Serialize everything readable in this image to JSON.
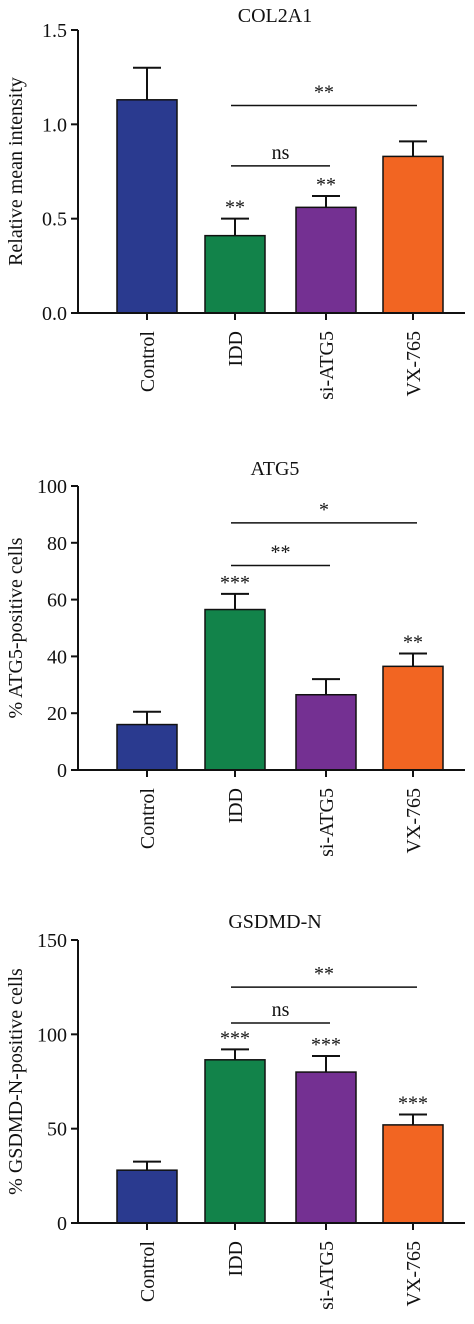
{
  "colors": {
    "control": "#2a3a8f",
    "idd": "#12834a",
    "si_atg5": "#743092",
    "vx765": "#f26522",
    "axis": "#111111"
  },
  "chart_data": [
    {
      "type": "bar",
      "title": "COL2A1",
      "ylabel": "Relative mean intensity",
      "ylim": [
        0,
        1.5
      ],
      "yticks": [
        "0.0",
        "0.5",
        "1.0",
        "1.5"
      ],
      "ytick_values": [
        0,
        0.5,
        1.0,
        1.5
      ],
      "categories": [
        "Control",
        "IDD",
        "si-ATG5",
        "VX-765"
      ],
      "values": [
        1.13,
        0.41,
        0.56,
        0.83
      ],
      "errors": [
        0.17,
        0.09,
        0.06,
        0.08
      ],
      "bar_labels": [
        "",
        "**",
        "**",
        ""
      ],
      "brackets": [
        {
          "from": 1,
          "to": 3,
          "label": "**",
          "y": 1.1
        },
        {
          "from": 1,
          "to": 2,
          "label": "ns",
          "y": 0.78
        }
      ]
    },
    {
      "type": "bar",
      "title": "ATG5",
      "ylabel": "% ATG5-positive cells",
      "ylim": [
        0,
        100
      ],
      "yticks": [
        "0",
        "20",
        "40",
        "60",
        "80",
        "100"
      ],
      "ytick_values": [
        0,
        20,
        40,
        60,
        80,
        100
      ],
      "categories": [
        "Control",
        "IDD",
        "si-ATG5",
        "VX-765"
      ],
      "values": [
        16,
        56.5,
        26.5,
        36.5
      ],
      "errors": [
        4.5,
        5.5,
        5.5,
        4.5
      ],
      "bar_labels": [
        "",
        "***",
        "",
        "**"
      ],
      "brackets": [
        {
          "from": 1,
          "to": 3,
          "label": "*",
          "y": 87
        },
        {
          "from": 1,
          "to": 2,
          "label": "**",
          "y": 72
        }
      ]
    },
    {
      "type": "bar",
      "title": "GSDMD-N",
      "ylabel": "% GSDMD-N-positive cells",
      "ylim": [
        0,
        150
      ],
      "yticks": [
        "0",
        "50",
        "100",
        "150"
      ],
      "ytick_values": [
        0,
        50,
        100,
        150
      ],
      "categories": [
        "Control",
        "IDD",
        "si-ATG5",
        "VX-765"
      ],
      "values": [
        28,
        86.5,
        80,
        52
      ],
      "errors": [
        4.5,
        5.5,
        8.5,
        5.5
      ],
      "bar_labels": [
        "",
        "***",
        "***",
        "***"
      ],
      "brackets": [
        {
          "from": 1,
          "to": 3,
          "label": "**",
          "y": 125
        },
        {
          "from": 1,
          "to": 2,
          "label": "ns",
          "y": 106
        }
      ]
    }
  ]
}
